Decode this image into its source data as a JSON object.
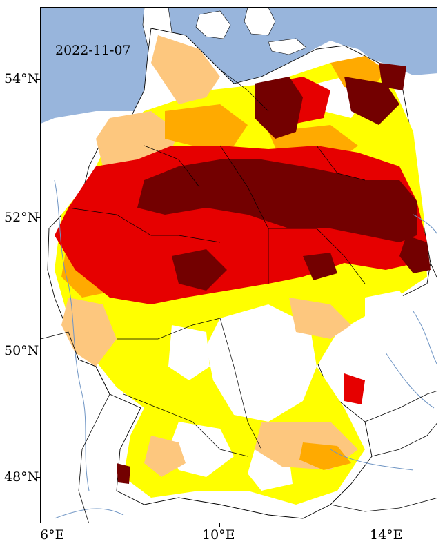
{
  "map": {
    "date": "2022-11-07",
    "colors": {
      "sea": "#98b5dc",
      "land": "#ffffff",
      "river": "#6f95c4",
      "border": "#000000",
      "class_yellow": "#ffff00",
      "class_light_orange": "#fdc77e",
      "class_orange": "#ffaa00",
      "class_red": "#e60000",
      "class_dark_red": "#730000"
    },
    "lat_ticks": [
      {
        "label": "54°N",
        "value": 54
      },
      {
        "label": "52°N",
        "value": 52
      },
      {
        "label": "50°N",
        "value": 50
      },
      {
        "label": "48°N",
        "value": 48
      }
    ],
    "lon_ticks": [
      {
        "label": "6°E",
        "value": 6
      },
      {
        "label": "10°E",
        "value": 10
      },
      {
        "label": "14°E",
        "value": 14
      }
    ]
  }
}
